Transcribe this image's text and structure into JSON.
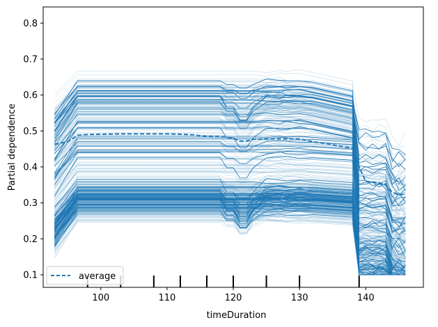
{
  "chart_data": {
    "type": "line",
    "title": "",
    "xlabel": "timeDuration",
    "ylabel": "Partial dependence",
    "xlim": [
      91.3,
      148.7
    ],
    "ylim": [
      0.065,
      0.845
    ],
    "xticks": [
      100,
      110,
      120,
      130,
      140
    ],
    "yticks": [
      0.1,
      0.2,
      0.3,
      0.4,
      0.5,
      0.6,
      0.7,
      0.8
    ],
    "grid": false,
    "legend": {
      "placement": "lower-left",
      "entries": [
        "average"
      ]
    },
    "colors": {
      "ice": "#1f77b4",
      "average": "#1f77b4"
    },
    "x_grid": [
      93,
      95,
      96.5,
      98,
      100,
      103,
      106,
      108,
      110,
      112,
      114,
      116,
      118,
      119,
      120,
      121,
      122,
      123,
      125,
      127,
      128,
      130,
      132,
      134,
      136,
      137,
      138,
      139,
      140,
      141,
      142,
      143,
      144,
      145,
      146
    ],
    "ice_profile": {
      "base_start": 0.3,
      "notes": "individual conditional expectation curves shown as thin lines"
    },
    "series": [
      {
        "name": "average",
        "style": "dashed",
        "x": [
          93,
          95,
          96.5,
          98,
          100,
          103,
          106,
          108,
          110,
          112,
          114,
          116,
          118,
          119,
          120,
          121,
          122,
          123,
          125,
          127,
          128,
          130,
          132,
          134,
          136,
          137,
          138,
          139,
          140,
          141,
          142,
          143,
          144,
          145,
          146
        ],
        "values": [
          0.463,
          0.47,
          0.488,
          0.49,
          0.491,
          0.492,
          0.492,
          0.492,
          0.492,
          0.491,
          0.489,
          0.485,
          0.484,
          0.483,
          0.48,
          0.472,
          0.472,
          0.477,
          0.478,
          0.478,
          0.478,
          0.478,
          0.47,
          0.465,
          0.458,
          0.455,
          0.453,
          0.4,
          0.36,
          0.358,
          0.356,
          0.35,
          0.33,
          0.322,
          0.325
        ]
      }
    ],
    "rug": [
      98,
      103,
      108,
      112,
      116,
      120,
      125,
      130,
      139
    ]
  }
}
